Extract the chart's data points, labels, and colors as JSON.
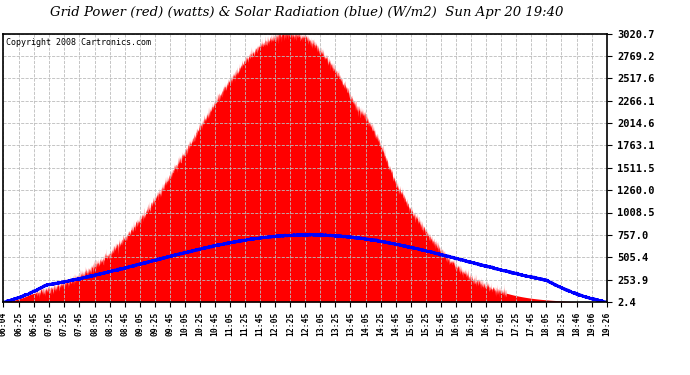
{
  "title": "Grid Power (red) (watts) & Solar Radiation (blue) (W/m2)  Sun Apr 20 19:40",
  "copyright": "Copyright 2008 Cartronics.com",
  "yticks": [
    2.4,
    253.9,
    505.4,
    757.0,
    1008.5,
    1260.0,
    1511.5,
    1763.1,
    2014.6,
    2266.1,
    2517.6,
    2769.2,
    3020.7
  ],
  "ymin": 2.4,
  "ymax": 3020.7,
  "bg_color": "#ffffff",
  "plot_bg_color": "#ffffff",
  "grid_color": "#cccccc",
  "fill_color": "#ff0000",
  "line_color": "#0000ff",
  "xtick_labels": [
    "06:04",
    "06:25",
    "06:45",
    "07:05",
    "07:25",
    "07:45",
    "08:05",
    "08:25",
    "08:45",
    "09:05",
    "09:25",
    "09:45",
    "10:05",
    "10:25",
    "10:45",
    "11:05",
    "11:25",
    "11:45",
    "12:05",
    "12:25",
    "12:45",
    "13:05",
    "13:25",
    "13:45",
    "14:05",
    "14:25",
    "14:45",
    "15:05",
    "15:25",
    "15:45",
    "16:05",
    "16:25",
    "16:45",
    "17:05",
    "17:25",
    "17:45",
    "18:05",
    "18:25",
    "18:46",
    "19:06",
    "19:26"
  ],
  "red_peak_time": 749,
  "blue_peak_time": 757,
  "blue_peak_val": 757.0,
  "red_peak_val": 3020.7
}
